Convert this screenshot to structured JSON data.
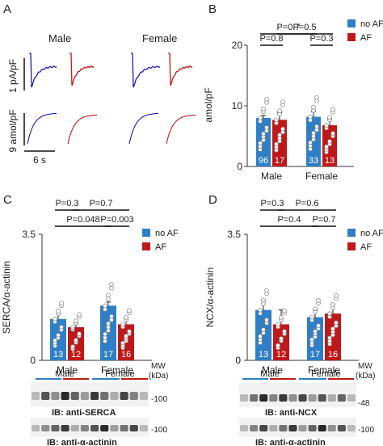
{
  "colors": {
    "noaf": "#2f7fc6",
    "af": "#c01818",
    "trace_blue": "#1d1db0",
    "trace_red": "#c21a1a",
    "blot_bg": "#f2f2f2",
    "band": "#111111"
  },
  "panel_letters": {
    "A": "A",
    "B": "B",
    "C": "C",
    "D": "D"
  },
  "panel_a": {
    "male": "Male",
    "female": "Female",
    "ylabel_top": "1 pA/pF",
    "ylabel_bottom": "9 amol/pF",
    "scale": "6 s"
  },
  "legend": {
    "noaf": "no AF",
    "af": "AF"
  },
  "blots": {
    "mw": "MW",
    "kda": "(kDa)",
    "male": "Male",
    "female": "Female",
    "serca_label": "IB: anti-SERCA",
    "serca_mw": "-100",
    "actinin_label": "IB: anti-α-actinin",
    "actinin_mw": "-100",
    "ncx_label": "IB: anti-NCX",
    "ncx_mw": "-48"
  },
  "chart_data": [
    {
      "id": "B",
      "type": "bar",
      "ylabel": "amol/pF",
      "ylim": [
        0,
        20
      ],
      "yticks": [
        "0",
        "10",
        "20"
      ],
      "categories": [
        "Male",
        "Female"
      ],
      "series": [
        {
          "name": "no AF",
          "values": [
            8,
            8.2
          ],
          "errors": [
            0.4,
            0.8
          ],
          "n": [
            "96",
            "33"
          ]
        },
        {
          "name": "AF",
          "values": [
            7.7,
            6.8
          ],
          "errors": [
            1.2,
            1.1
          ],
          "n": [
            "17",
            "13"
          ]
        }
      ],
      "pvalues": [
        {
          "label": "P=0.7",
          "from": "Male no AF",
          "to": "Female no AF"
        },
        {
          "label": "P=0.5",
          "from": "Female AF",
          "to": "Male AF"
        },
        {
          "label": "P=0.8",
          "from": "Male no AF",
          "to": "Male AF"
        },
        {
          "label": "P=0.3",
          "from": "Female no AF",
          "to": "Female AF"
        }
      ]
    },
    {
      "id": "C",
      "type": "bar",
      "ylabel": "SERCA/α-actinin",
      "ylim": [
        0,
        3.5
      ],
      "yticks": [
        "0",
        "3.5"
      ],
      "categories": [
        "Male",
        "Female"
      ],
      "series": [
        {
          "name": "no AF",
          "values": [
            1.15,
            1.52
          ],
          "errors": [
            0.15,
            0.1
          ],
          "n": [
            "13",
            "17"
          ]
        },
        {
          "name": "AF",
          "values": [
            0.92,
            1.0
          ],
          "errors": [
            0.1,
            0.17
          ],
          "n": [
            "12",
            "16"
          ]
        }
      ],
      "pvalues": [
        {
          "label": "P=0.3",
          "from": "Male no AF",
          "to": "Male AF"
        },
        {
          "label": "P=0.7",
          "from": "Male AF",
          "to": "Female AF"
        },
        {
          "label": "P=0.048",
          "from": "Male no AF",
          "to": "Female no AF"
        },
        {
          "label": "P=0.003",
          "from": "Female no AF",
          "to": "Female AF"
        }
      ]
    },
    {
      "id": "D",
      "type": "bar",
      "ylabel": "NCX/α-actinin",
      "ylim": [
        0,
        3.5
      ],
      "yticks": [
        "0",
        "3.5"
      ],
      "categories": [
        "Male",
        "Female"
      ],
      "series": [
        {
          "name": "no AF",
          "values": [
            1.4,
            1.2
          ],
          "errors": [
            0.25,
            0.2
          ],
          "n": [
            "13",
            "17"
          ]
        },
        {
          "name": "AF",
          "values": [
            1.0,
            1.3
          ],
          "errors": [
            0.4,
            0.25
          ],
          "n": [
            "12",
            "16"
          ]
        }
      ],
      "pvalues": [
        {
          "label": "P=0.3",
          "from": "Male no AF",
          "to": "Male AF"
        },
        {
          "label": "P=0.6",
          "from": "Male AF",
          "to": "Female AF"
        },
        {
          "label": "P=0.4",
          "from": "Male no AF",
          "to": "Female no AF"
        },
        {
          "label": "P=0.7",
          "from": "Female no AF",
          "to": "Female AF"
        }
      ]
    }
  ]
}
